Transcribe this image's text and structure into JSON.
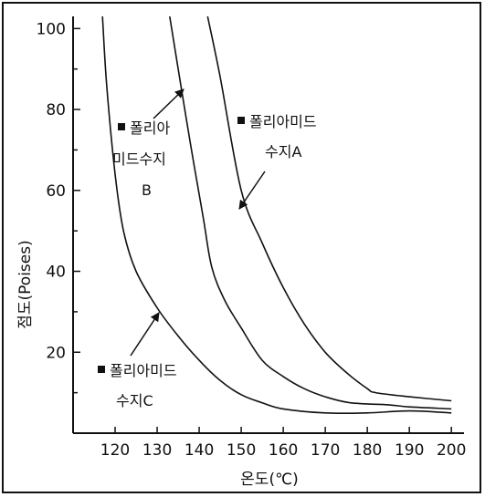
{
  "colors": {
    "line": "#111111",
    "background": "#ffffff"
  },
  "chart_data": {
    "type": "line",
    "title": "",
    "xlabel": "온도(℃)",
    "ylabel": "점도(Poises)",
    "xlim": [
      110,
      203
    ],
    "ylim": [
      0,
      103
    ],
    "xticks": [
      120,
      130,
      140,
      150,
      160,
      170,
      180,
      190,
      200
    ],
    "yticks": [
      20,
      40,
      60,
      80,
      100
    ],
    "grid": false,
    "series": [
      {
        "name": "폴리아미드 수지A",
        "x": [
          142,
          145,
          150,
          155,
          160,
          165,
          170,
          175,
          180,
          182,
          190,
          200
        ],
        "y": [
          103,
          88,
          60,
          47,
          36,
          27,
          20,
          15,
          11,
          10,
          9,
          8
        ]
      },
      {
        "name": "폴리아미드 수지B",
        "x": [
          133,
          135,
          138,
          141,
          143,
          146,
          150,
          155,
          160,
          165,
          170,
          176,
          185,
          190,
          200
        ],
        "y": [
          103,
          90,
          71,
          53,
          41,
          33,
          26,
          18,
          14,
          11,
          9,
          7.5,
          7,
          6.5,
          6
        ]
      },
      {
        "name": "폴리아미드 수지C",
        "x": [
          117,
          118,
          120,
          122,
          125,
          130,
          135,
          140,
          145,
          150,
          155,
          160,
          170,
          180,
          190,
          200
        ],
        "y": [
          103,
          86,
          64,
          50,
          40,
          31,
          24,
          18,
          13,
          9.5,
          7.5,
          6,
          5,
          5,
          5.5,
          5
        ]
      }
    ],
    "annotations": [
      {
        "line1": "폴리아미드",
        "line2": "수지A"
      },
      {
        "line1": "폴리아",
        "line2": "미드수지",
        "line3": "B"
      },
      {
        "line1": "폴리아미드",
        "line2": "수지C"
      }
    ]
  }
}
